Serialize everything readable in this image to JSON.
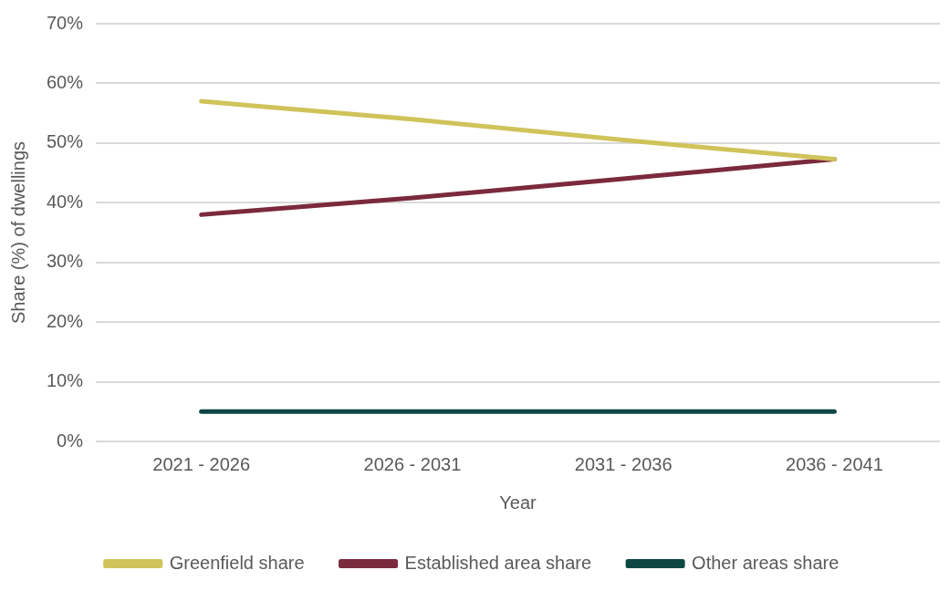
{
  "chart_data": {
    "type": "line",
    "xlabel": "Year",
    "ylabel": "Share (%) of dwellings",
    "categories": [
      "2021 - 2026",
      "2026 - 2031",
      "2031 - 2036",
      "2036 - 2041"
    ],
    "series": [
      {
        "name": "Greenfield share",
        "color": "#cfc35a",
        "values": [
          57,
          54,
          50.5,
          47.3
        ]
      },
      {
        "name": "Established area share",
        "color": "#7a2a3c",
        "values": [
          38,
          40.8,
          44,
          47.3
        ]
      },
      {
        "name": "Other areas share",
        "color": "#0d4744",
        "values": [
          5,
          5,
          5,
          5
        ]
      }
    ],
    "ylim": [
      0,
      70
    ],
    "yticks": [
      {
        "value": 0,
        "label": "0%"
      },
      {
        "value": 10,
        "label": "10%"
      },
      {
        "value": 20,
        "label": "20%"
      },
      {
        "value": 30,
        "label": "30%"
      },
      {
        "value": 40,
        "label": "40%"
      },
      {
        "value": 50,
        "label": "50%"
      },
      {
        "value": 60,
        "label": "60%"
      },
      {
        "value": 70,
        "label": "70%"
      }
    ],
    "grid": "y",
    "legend": "bottom",
    "marker": "none",
    "line_style": "solid"
  }
}
